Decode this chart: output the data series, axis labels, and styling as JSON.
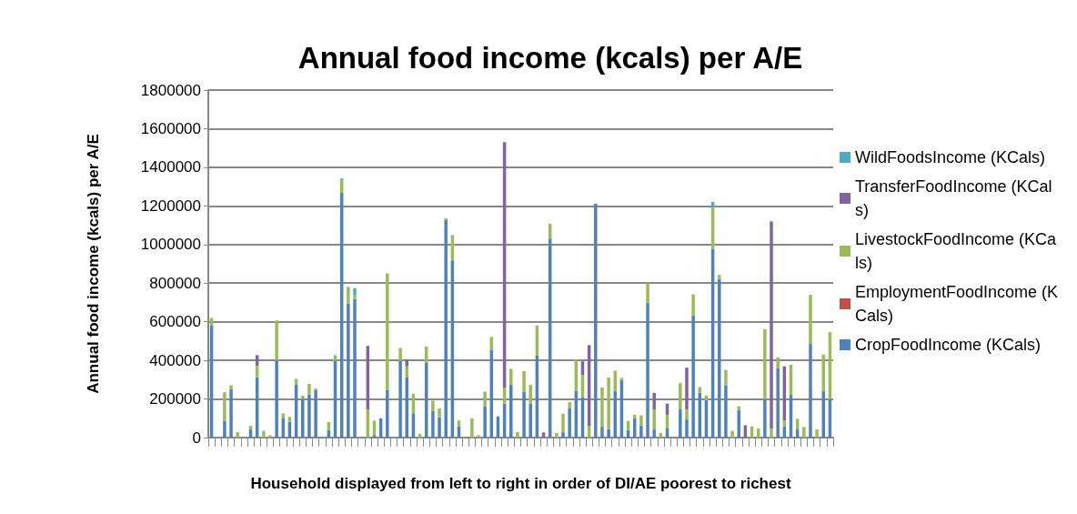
{
  "chart_data": {
    "type": "bar",
    "title": "Annual food income (kcals) per A/E",
    "xlabel": "Household displayed from left to right in order of DI/AE poorest to richest",
    "ylabel": "Annual food income (kcals) per A/E",
    "categories": [
      null,
      null,
      null,
      null,
      null,
      null,
      null,
      null,
      null,
      null,
      null,
      null,
      null,
      null,
      null,
      null,
      null,
      null,
      null,
      null,
      null,
      null,
      null,
      null,
      null,
      null,
      null,
      null,
      null,
      null,
      null,
      null,
      null,
      null,
      null,
      null,
      null,
      null,
      null,
      null,
      null,
      null,
      null,
      null,
      null,
      null,
      null,
      null,
      null,
      null,
      null,
      null,
      null,
      null,
      null,
      null,
      null,
      null,
      null,
      null,
      null,
      null,
      null,
      null,
      null,
      null,
      null,
      null,
      null,
      null,
      null,
      null,
      null,
      null,
      null,
      null,
      null,
      null,
      null,
      null,
      null,
      null,
      null,
      null,
      null,
      null,
      null,
      null,
      null,
      null,
      null,
      null,
      null,
      null,
      null,
      null
    ],
    "stacked": true,
    "ylim": [
      0,
      1800000
    ],
    "yticks": [
      0,
      200000,
      400000,
      600000,
      800000,
      1000000,
      1200000,
      1400000,
      1600000,
      1800000
    ],
    "grid": "y",
    "legend": "right",
    "series": [
      {
        "name": "CropFoodIncome (KCals)",
        "color": "#4f81bd",
        "values": [
          580000,
          0,
          86000,
          251000,
          0,
          0,
          42000,
          312000,
          0,
          0,
          400000,
          102000,
          82000,
          275000,
          201000,
          223000,
          248000,
          0,
          39000,
          397000,
          1268000,
          694000,
          717000,
          0,
          0,
          13000,
          100000,
          246000,
          0,
          397000,
          311000,
          126000,
          0,
          389000,
          138000,
          105000,
          1127000,
          918000,
          58000,
          0,
          0,
          0,
          160000,
          452000,
          110000,
          176000,
          273000,
          0,
          238000,
          176000,
          424000,
          0,
          1031000,
          0,
          30000,
          151000,
          242000,
          209000,
          0,
          1211000,
          56000,
          44000,
          240000,
          298000,
          39000,
          100000,
          63000,
          698000,
          42000,
          0,
          47000,
          0,
          146000,
          94000,
          632000,
          232000,
          193000,
          976000,
          821000,
          271000,
          0,
          143000,
          0,
          0,
          0,
          199000,
          0,
          358000,
          58000,
          221000,
          42000,
          0,
          485000,
          0,
          242000,
          199000
        ]
      },
      {
        "name": "EmploymentFoodIncome (KCals)",
        "color": "#c0504d",
        "values": [
          0,
          0,
          0,
          0,
          0,
          0,
          0,
          0,
          0,
          0,
          0,
          0,
          0,
          0,
          0,
          0,
          0,
          0,
          0,
          0,
          0,
          0,
          0,
          0,
          0,
          0,
          0,
          0,
          0,
          0,
          0,
          0,
          0,
          0,
          0,
          0,
          0,
          0,
          0,
          0,
          0,
          0,
          0,
          0,
          0,
          0,
          0,
          0,
          0,
          0,
          0,
          0,
          0,
          0,
          0,
          0,
          0,
          0,
          0,
          0,
          0,
          0,
          0,
          0,
          0,
          0,
          0,
          0,
          0,
          0,
          0,
          0,
          0,
          0,
          0,
          0,
          0,
          0,
          0,
          0,
          0,
          0,
          0,
          0,
          0,
          0,
          0,
          0,
          0,
          0,
          0,
          0,
          0,
          0,
          0,
          0
        ]
      },
      {
        "name": "LivestockFoodIncome (KCals)",
        "color": "#9bbb59",
        "values": [
          40000,
          0,
          149000,
          20000,
          28000,
          0,
          19000,
          60000,
          30000,
          12000,
          207000,
          23000,
          25000,
          29000,
          16000,
          55000,
          6000,
          0,
          41000,
          25000,
          66000,
          87000,
          19000,
          0,
          144000,
          75000,
          0,
          604000,
          0,
          67000,
          58000,
          100000,
          19000,
          82000,
          53000,
          46000,
          9000,
          124000,
          31000,
          0,
          100000,
          13000,
          78000,
          69000,
          0,
          83000,
          83000,
          28000,
          106000,
          97000,
          157000,
          0,
          77000,
          24000,
          94000,
          33000,
          163000,
          116000,
          61000,
          0,
          204000,
          267000,
          107000,
          11000,
          47000,
          19000,
          52000,
          102000,
          104000,
          24000,
          71000,
          0,
          136000,
          52000,
          110000,
          30000,
          25000,
          213000,
          22000,
          79000,
          35000,
          19000,
          0,
          58000,
          47000,
          363000,
          45000,
          58000,
          30000,
          156000,
          55000,
          55000,
          254000,
          42000,
          188000,
          347000
        ]
      },
      {
        "name": "TransferFoodIncome (KCals)",
        "color": "#8064a2",
        "values": [
          0,
          0,
          0,
          0,
          0,
          0,
          0,
          55000,
          0,
          0,
          0,
          0,
          0,
          0,
          0,
          0,
          0,
          0,
          0,
          0,
          0,
          0,
          0,
          0,
          331000,
          0,
          0,
          0,
          0,
          0,
          36000,
          0,
          0,
          0,
          0,
          0,
          0,
          0,
          0,
          0,
          0,
          0,
          0,
          0,
          0,
          1271000,
          0,
          0,
          0,
          0,
          0,
          27000,
          0,
          0,
          0,
          0,
          0,
          70000,
          418000,
          0,
          0,
          0,
          0,
          0,
          0,
          0,
          0,
          0,
          86000,
          0,
          58000,
          0,
          0,
          216000,
          0,
          0,
          0,
          0,
          0,
          0,
          0,
          0,
          64000,
          0,
          0,
          0,
          1075000,
          0,
          281000,
          0,
          0,
          0,
          0,
          0,
          0,
          0
        ]
      },
      {
        "name": "WildFoodsIncome (KCals)",
        "color": "#4bacc6",
        "values": [
          0,
          0,
          0,
          0,
          0,
          0,
          0,
          0,
          5000,
          0,
          0,
          0,
          0,
          0,
          0,
          0,
          0,
          0,
          0,
          5000,
          8000,
          0,
          38000,
          0,
          0,
          0,
          0,
          0,
          0,
          0,
          0,
          0,
          0,
          0,
          0,
          0,
          0,
          6000,
          0,
          0,
          0,
          0,
          0,
          0,
          0,
          0,
          0,
          0,
          0,
          0,
          0,
          0,
          0,
          0,
          0,
          0,
          0,
          0,
          0,
          0,
          0,
          0,
          0,
          0,
          0,
          0,
          0,
          0,
          0,
          0,
          0,
          0,
          0,
          0,
          0,
          0,
          0,
          32000,
          0,
          0,
          0,
          0,
          0,
          0,
          0,
          0,
          0,
          0,
          0,
          0,
          0,
          0,
          0,
          0,
          0,
          0
        ]
      }
    ]
  }
}
